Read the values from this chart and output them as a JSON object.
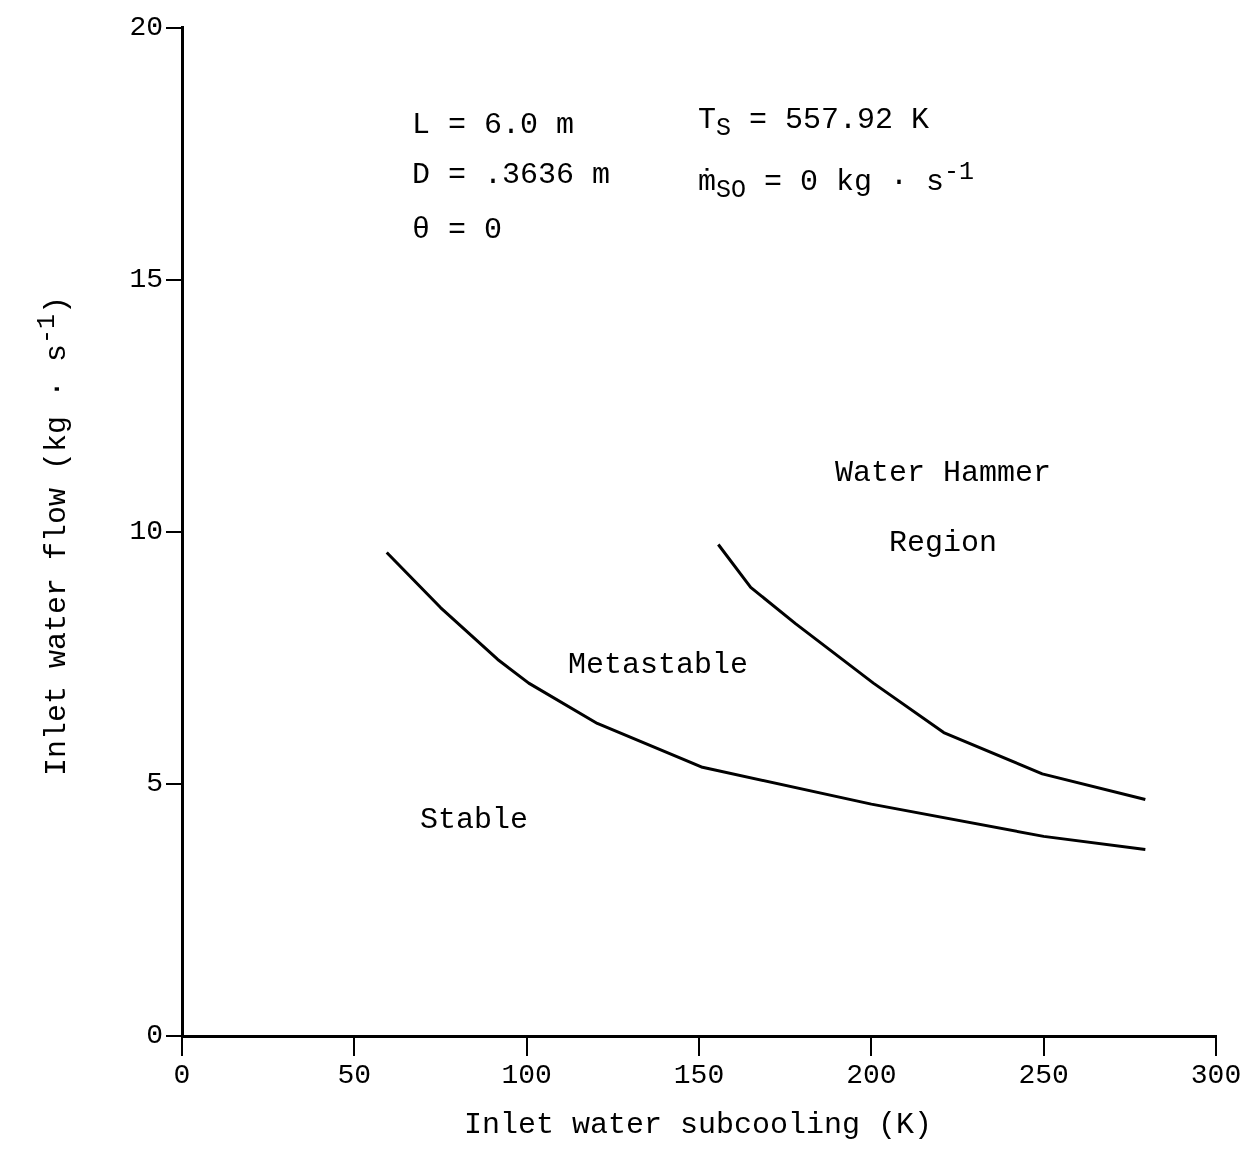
{
  "chart_data": {
    "type": "line",
    "xlabel": "Inlet water subcooling (K)",
    "ylabel": "Inlet water flow (kg · s$^{-1}$)",
    "xlim": [
      0,
      300
    ],
    "xticks": [
      0,
      50,
      100,
      150,
      200,
      250,
      300
    ],
    "ylim": [
      0,
      20
    ],
    "yticks": [
      0,
      5,
      10,
      15,
      20
    ],
    "grid": false,
    "legend": false,
    "marker": "none",
    "line_style": "solid",
    "series": [
      {
        "color": "#000000",
        "x": [
          59.4,
          75,
          91.6,
          100.6,
          120.5,
          151,
          200,
          250,
          279.5
        ],
        "values": [
          9.59,
          8.5,
          7.47,
          7.0,
          6.2,
          5.33,
          4.6,
          3.96,
          3.7
        ]
      },
      {
        "color": "#000000",
        "x": [
          155.6,
          165,
          178,
          200.6,
          221,
          249.6,
          279.5
        ],
        "values": [
          9.75,
          8.9,
          8.18,
          7.0,
          6.02,
          5.2,
          4.69
        ]
      }
    ],
    "annotations": [
      "L = 6.0 m",
      "T$_{S}$ = 557.92 K",
      "D = .3636 m",
      "ṁ$_{SO}$ = 0 kg · s$^{-1}$",
      "θ = 0",
      "Water Hammer Region",
      "Metastable",
      "Stable"
    ]
  }
}
